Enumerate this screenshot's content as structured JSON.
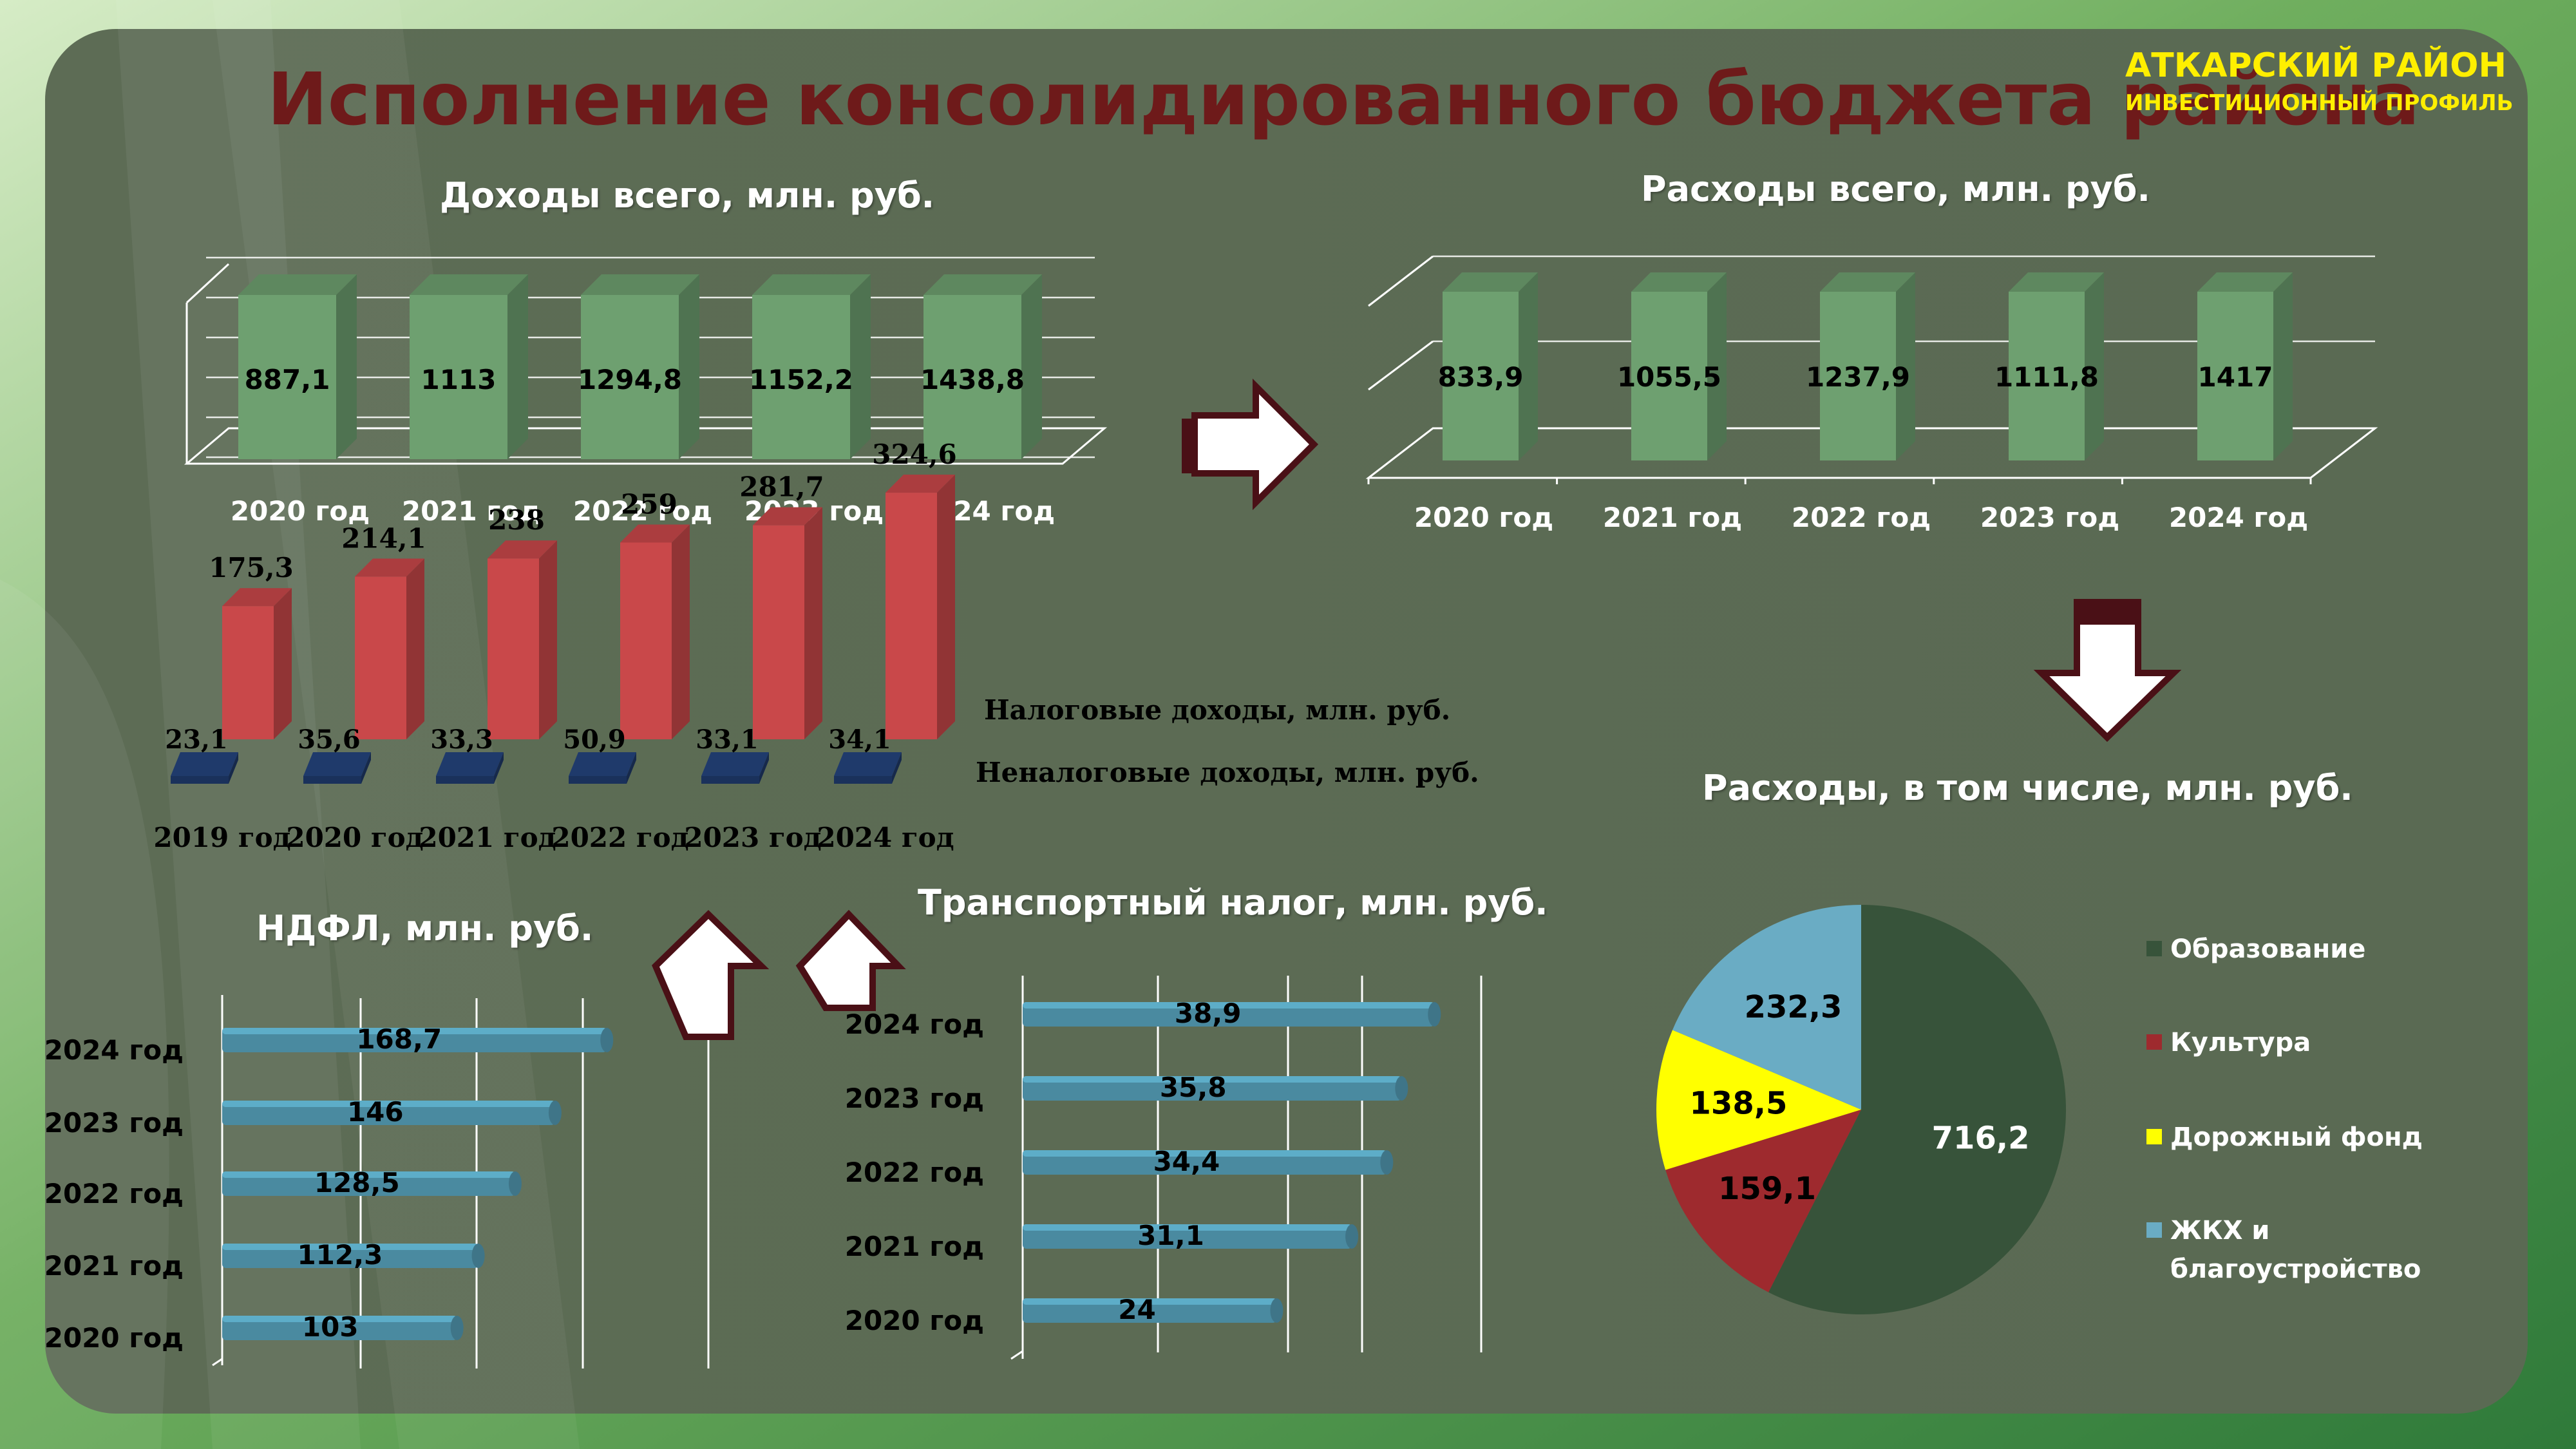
{
  "header": {
    "title": "Исполнение консолидированного бюджета района",
    "region": "АТКАРСКИЙ РАЙОН",
    "subtitle": "ИНВЕСТИЦИОННЫЙ ПРОФИЛЬ"
  },
  "colors": {
    "green_bar": "#6ea070",
    "red_bar": "#c9484a",
    "navy_bar": "#1f3a6b",
    "teal_bar": "#4a8aa0",
    "pie_education": "#37533a",
    "pie_culture": "#9e2a2e",
    "pie_roads": "#ffff00",
    "pie_housing": "#6aacc4",
    "title": "#6e1a1a",
    "region": "#ffef00"
  },
  "chart_data": [
    {
      "id": "income",
      "type": "bar",
      "title": "Доходы всего, млн. руб.",
      "categories": [
        "2020 год",
        "2021 год",
        "2022 год",
        "2023 год",
        "2024 год"
      ],
      "values": [
        887.1,
        1113,
        1294.8,
        1152.2,
        1438.8
      ],
      "labels": [
        "887,1",
        "1113",
        "1294,8",
        "1152,2",
        "1438,8"
      ]
    },
    {
      "id": "expenses",
      "type": "bar",
      "title": "Расходы всего, млн. руб.",
      "categories": [
        "2020 год",
        "2021 год",
        "2022 год",
        "2023 год",
        "2024 год"
      ],
      "values": [
        833.9,
        1055.5,
        1237.9,
        1111.8,
        1417
      ],
      "labels": [
        "833,9",
        "1055,5",
        "1237,9",
        "1111,8",
        "1417"
      ]
    },
    {
      "id": "tax",
      "type": "bar",
      "categories": [
        "2019 год",
        "2020 год",
        "2021 год",
        "2022 год",
        "2023 год",
        "2024 год"
      ],
      "series": [
        {
          "name": "Налоговые доходы, млн. руб.",
          "values": [
            175.3,
            214.1,
            238,
            259,
            281.7,
            324.6
          ],
          "labels": [
            "175,3",
            "214,1",
            "238",
            "259",
            "281,7",
            "324,6"
          ]
        },
        {
          "name": "Неналоговые доходы, млн. руб.",
          "values": [
            23.1,
            35.6,
            33.3,
            50.9,
            33.1,
            34.1
          ],
          "labels": [
            "23,1",
            "35,6",
            "33,3",
            "50,9",
            "33,1",
            "34,1"
          ]
        }
      ]
    },
    {
      "id": "ndfl",
      "type": "bar",
      "orientation": "horizontal",
      "title": "НДФЛ, млн. руб.",
      "categories": [
        "2024 год",
        "2023 год",
        "2022 год",
        "2021 год",
        "2020 год"
      ],
      "values": [
        168.7,
        146,
        128.5,
        112.3,
        103
      ],
      "labels": [
        "168,7",
        "146",
        "128,5",
        "112,3",
        "103"
      ]
    },
    {
      "id": "transport",
      "type": "bar",
      "orientation": "horizontal",
      "title": "Транспортный налог, млн. руб.",
      "categories": [
        "2024 год",
        "2023 год",
        "2022 год",
        "2021 год",
        "2020 год"
      ],
      "values": [
        38.9,
        35.8,
        34.4,
        31.1,
        24
      ],
      "labels": [
        "38,9",
        "35,8",
        "34,4",
        "31,1",
        "24"
      ]
    },
    {
      "id": "structure",
      "type": "pie",
      "title": "Расходы, в том числе, млн. руб.",
      "categories": [
        "Образование",
        "Культура",
        "Дорожный фонд",
        "ЖКХ и благоустройство"
      ],
      "legend_lines": [
        [
          "Образование"
        ],
        [
          "Культура"
        ],
        [
          "Дорожный фонд"
        ],
        [
          "ЖКХ и",
          "благоустройство"
        ]
      ],
      "values": [
        716.2,
        159.1,
        138.5,
        232.3
      ],
      "labels": [
        "716,2",
        "159,1",
        "138,5",
        "232,3"
      ],
      "legend": "right"
    }
  ]
}
